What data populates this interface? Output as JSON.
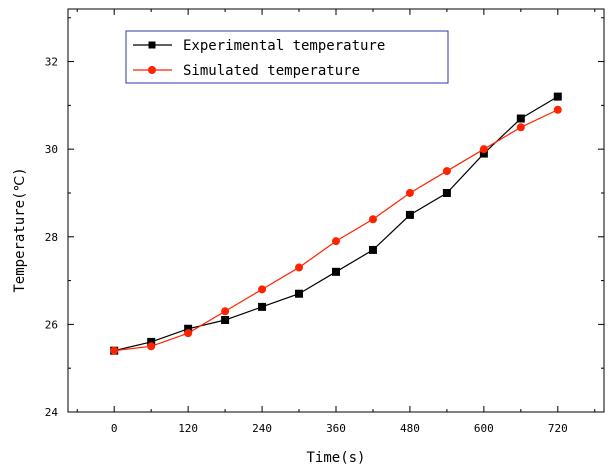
{
  "chart_data": {
    "type": "line",
    "title": "",
    "xlabel": "Time(s)",
    "ylabel": "Temperature(℃)",
    "xlim": [
      -75,
      795
    ],
    "ylim": [
      24,
      33.2
    ],
    "xticks": [
      0,
      120,
      240,
      360,
      480,
      600,
      720
    ],
    "yticks": [
      24,
      26,
      28,
      30,
      32
    ],
    "x_minor_step": 60,
    "y_minor_step": 1,
    "grid": false,
    "legend_position": "top-left",
    "series": [
      {
        "name": "Experimental temperature",
        "color": "#000000",
        "marker": "square",
        "x": [
          0,
          60,
          120,
          180,
          240,
          300,
          360,
          420,
          480,
          540,
          600,
          660,
          720
        ],
        "y": [
          25.4,
          25.6,
          25.9,
          26.1,
          26.4,
          26.7,
          27.2,
          27.7,
          28.5,
          29.0,
          29.9,
          30.7,
          31.2
        ]
      },
      {
        "name": "Simulated temperature",
        "color": "#ff2200",
        "marker": "circle",
        "x": [
          0,
          60,
          120,
          180,
          240,
          300,
          360,
          420,
          480,
          540,
          600,
          660,
          720
        ],
        "y": [
          25.4,
          25.5,
          25.8,
          26.3,
          26.8,
          27.3,
          27.9,
          28.4,
          29.0,
          29.5,
          30.0,
          30.5,
          30.9
        ]
      }
    ]
  }
}
